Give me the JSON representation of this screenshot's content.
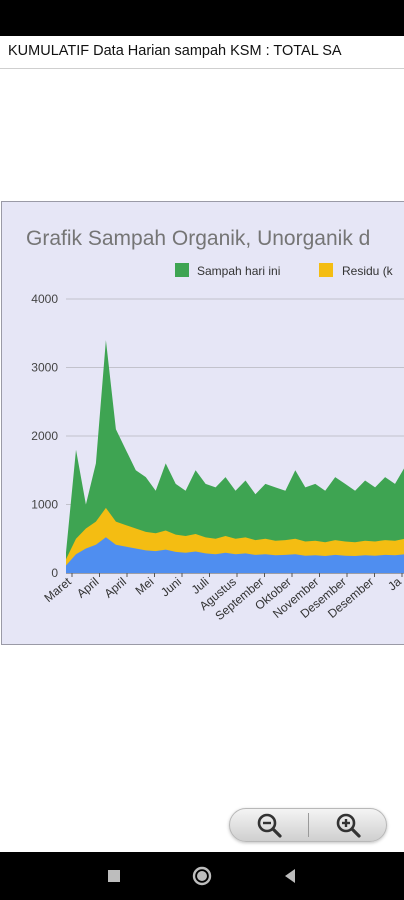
{
  "header": {
    "title": "KUMULATIF Data Harian sampah KSM : TOTAL SA"
  },
  "chart_data": {
    "type": "area",
    "title": "Grafik Sampah Organik, Unorganik d",
    "legend": [
      "Sampah hari ini",
      "Residu (k"
    ],
    "legend_position": "top-right",
    "y_ticks": [
      "4000",
      "3000",
      "2000",
      "1000",
      "0"
    ],
    "ylim": [
      0,
      4000
    ],
    "grid": true,
    "x_ticks": [
      "Maret",
      "April",
      "April",
      "Mei",
      "Juni",
      "Juli",
      "Agustus",
      "September",
      "Oktober",
      "November",
      "Desember",
      "Desember",
      "Ja"
    ],
    "colors": {
      "total": "#3ea452",
      "residu": "#f4bd12",
      "base": "#4f8ef0",
      "accent": "#e4582a",
      "panel": "#e6e6f6"
    },
    "series": [
      {
        "name": "Sampah hari ini",
        "values": [
          300,
          1800,
          1000,
          1600,
          3400,
          2100,
          1800,
          1500,
          1400,
          1200,
          1600,
          1300,
          1200,
          1500,
          1300,
          1250,
          1400,
          1200,
          1350,
          1150,
          1300,
          1250,
          1200,
          1500,
          1250,
          1300,
          1200,
          1400,
          1300,
          1200,
          1350,
          1250,
          1400,
          1300,
          1550
        ]
      },
      {
        "name": "Residu (k",
        "values": [
          200,
          500,
          650,
          750,
          950,
          750,
          700,
          650,
          600,
          580,
          620,
          560,
          540,
          570,
          520,
          500,
          540,
          500,
          520,
          480,
          500,
          470,
          480,
          500,
          460,
          470,
          450,
          480,
          460,
          450,
          470,
          460,
          480,
          470,
          500
        ]
      }
    ]
  },
  "zoom": {
    "out_icon": "zoom-out-icon",
    "in_icon": "zoom-in-icon"
  },
  "nav": {
    "recents_icon": "square-icon",
    "home_icon": "circle-icon",
    "back_icon": "triangle-back-icon"
  }
}
